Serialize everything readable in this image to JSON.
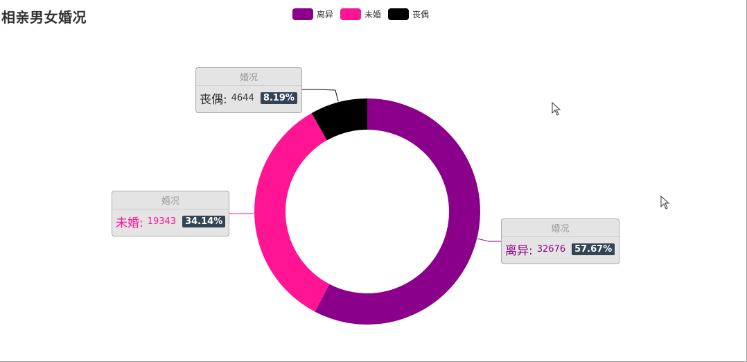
{
  "chart_data": {
    "type": "pie",
    "variant": "donut",
    "title": "相亲男女婚况",
    "series_name": "婚况",
    "legend": [
      "离异",
      "未婚",
      "丧偶"
    ],
    "legend_position": "top-center",
    "slices": [
      {
        "name": "离异",
        "value": 32676,
        "percent": "57.67%",
        "color": "#8b008b"
      },
      {
        "name": "未婚",
        "value": 19343,
        "percent": "34.14%",
        "color": "#ff1493"
      },
      {
        "name": "丧偶",
        "value": 4644,
        "percent": "8.19%",
        "color": "#000000"
      }
    ]
  }
}
